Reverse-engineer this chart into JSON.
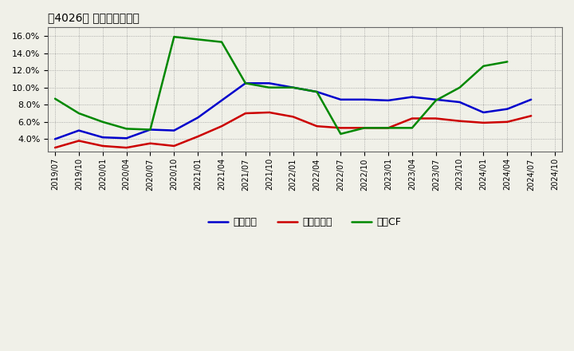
{
  "title": "［4026］ マージンの推移",
  "x_labels": [
    "2019/07",
    "2019/10",
    "2020/01",
    "2020/04",
    "2020/07",
    "2020/10",
    "2021/01",
    "2021/04",
    "2021/07",
    "2021/10",
    "2022/01",
    "2022/04",
    "2022/07",
    "2022/10",
    "2023/01",
    "2023/04",
    "2023/07",
    "2023/10",
    "2024/01",
    "2024/04",
    "2024/07",
    "2024/10"
  ],
  "keijo": [
    4.0,
    5.0,
    4.2,
    4.1,
    5.1,
    5.0,
    6.5,
    8.5,
    10.5,
    10.5,
    10.0,
    9.5,
    8.6,
    8.6,
    8.5,
    8.9,
    8.6,
    8.3,
    7.1,
    7.5,
    8.6,
    null
  ],
  "touki": [
    3.0,
    3.8,
    3.2,
    3.0,
    3.5,
    3.2,
    4.3,
    5.5,
    7.0,
    7.1,
    6.6,
    5.5,
    5.3,
    5.3,
    5.3,
    6.4,
    6.4,
    6.1,
    5.9,
    6.0,
    6.7,
    null
  ],
  "eigyo_cf": [
    8.7,
    7.0,
    6.0,
    5.2,
    5.1,
    15.9,
    15.6,
    15.3,
    10.5,
    10.0,
    10.0,
    9.5,
    4.6,
    5.3,
    5.3,
    5.3,
    8.5,
    10.0,
    12.5,
    13.0,
    null,
    null
  ],
  "keijo_color": "#0000cc",
  "touki_color": "#cc0000",
  "eigyo_cf_color": "#008800",
  "bg_color": "#f0f0e8",
  "ylim": [
    2.5,
    17.0
  ],
  "yticks": [
    4.0,
    6.0,
    8.0,
    10.0,
    12.0,
    14.0,
    16.0
  ],
  "legend_labels": [
    "経常利益",
    "当期純利益",
    "営業CF"
  ]
}
